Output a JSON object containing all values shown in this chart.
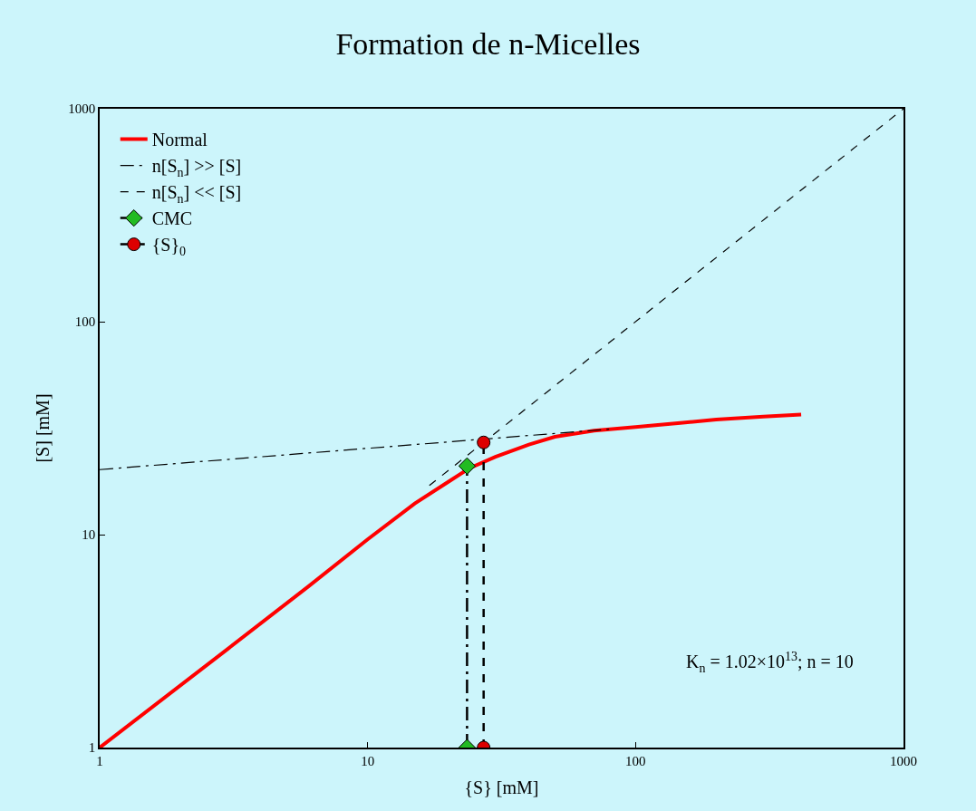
{
  "chart_data": {
    "type": "line",
    "title": "Formation de n-Micelles",
    "xlabel": "{S} [mM]",
    "ylabel": "[S] [mM]",
    "log": "xy",
    "xlim": [
      1,
      1000
    ],
    "ylim": [
      1,
      1000
    ],
    "xticks": [
      1,
      10,
      100,
      1000
    ],
    "yticks": [
      1,
      10,
      100,
      1000
    ],
    "grid": false,
    "legend": "top left",
    "series": [
      {
        "name": "Normal",
        "color": "#ff0000",
        "line_style": "solid",
        "marker": "none",
        "x": [
          1,
          3,
          6,
          10,
          15,
          20,
          24,
          30,
          40,
          50,
          70,
          100,
          150,
          200,
          300,
          415
        ],
        "values": [
          1,
          2.9,
          5.7,
          9.5,
          14,
          17.7,
          20.5,
          23.2,
          26.5,
          28.8,
          30.8,
          32,
          33.5,
          34.7,
          35.8,
          36.6
        ]
      },
      {
        "name": "n[S$_{n}$] >> [S]",
        "color": "#000000",
        "line_style": "dashdot",
        "marker": "none",
        "x": [
          1,
          80
        ],
        "values": [
          20.2,
          31.3
        ]
      },
      {
        "name": "n[S$_{n}$] << [S]",
        "color": "#000000",
        "line_style": "dashed",
        "marker": "none",
        "x": [
          17,
          1000
        ],
        "values": [
          17,
          1000
        ]
      },
      {
        "name": "CMC",
        "color": "#000000",
        "colors": [
          "#22bb22",
          "#22bb22"
        ],
        "line_style": "dashdot",
        "marker": "diamond",
        "x": [
          23.5,
          23.5
        ],
        "values": [
          1,
          21
        ]
      },
      {
        "name": "{S}$_{0}$",
        "color": "#000000",
        "colors": [
          "#dd0000",
          "#dd0000"
        ],
        "line_style": "dashed",
        "marker": "circle",
        "x": [
          27.1,
          27.1
        ],
        "values": [
          1,
          27.1
        ]
      }
    ],
    "annotations": [
      "K$_{n}$ = 1.02×10$^{13}$; n = 10"
    ]
  }
}
